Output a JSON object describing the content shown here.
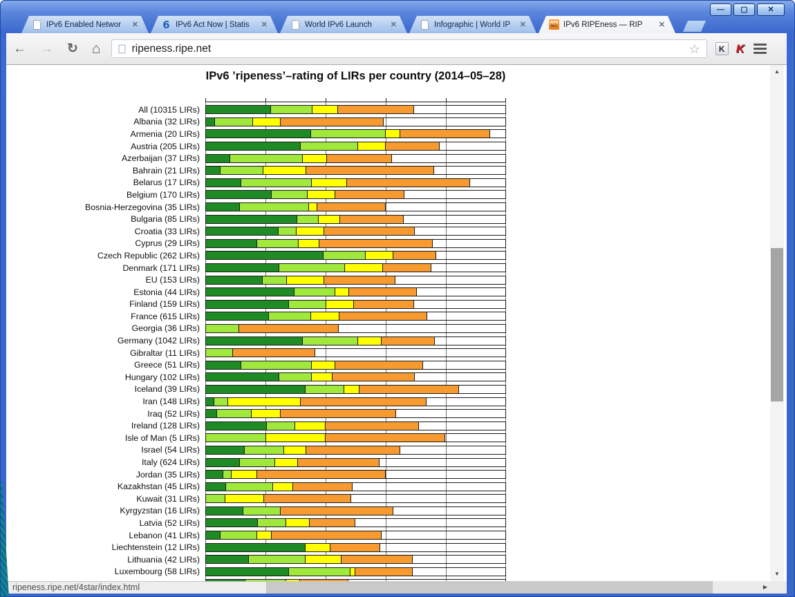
{
  "window": {
    "controls": {
      "minimize": "—",
      "maximize": "▢",
      "close": "✕"
    }
  },
  "icons": {
    "back": "←",
    "forward": "→",
    "reload": "↻",
    "home": "⌂",
    "star": "☆",
    "tab_close": "✕",
    "k_extension": "K",
    "kaspersky": "K",
    "ipv6_favicon": "6",
    "ripe_favicon_line1": "RIPE",
    "ripe_favicon_line2": "NCC",
    "scroll_up": "▲",
    "scroll_down": "▼",
    "scroll_right": "▶"
  },
  "tabs": [
    {
      "label": "IPv6 Enabled Networ",
      "icon": "page-icon",
      "active": false
    },
    {
      "label": "IPv6 Act Now | Statis",
      "icon": "ipv6-logo-icon",
      "active": false
    },
    {
      "label": "World IPv6 Launch",
      "icon": "page-icon",
      "active": false
    },
    {
      "label": "Infographic | World IP",
      "icon": "page-icon",
      "active": false
    },
    {
      "label": "IPv6 RIPEness — RIP",
      "icon": "ripe-ncc-favicon",
      "active": true
    }
  ],
  "toolbar": {
    "url": "ripeness.ripe.net"
  },
  "statusbar": {
    "link_preview": "ripeness.ripe.net/4star/index.html"
  },
  "chart_data": {
    "type": "bar",
    "subtype": "horizontal-stacked",
    "title": "IPv6 ’ripeness’–rating of LIRs per country (2014–05–28)",
    "xlabel": "",
    "ylabel": "",
    "xlim": [
      0,
      100
    ],
    "gridlines_pct": [
      0,
      20,
      40,
      60,
      80,
      100
    ],
    "grid": true,
    "legend": "none visible",
    "segment_colors": [
      "#1f8b24",
      "#a0e83c",
      "#ffff00",
      "#f79b30"
    ],
    "remainder_color": "#ffffff",
    "bar_border_color": "#1a1a1a",
    "units": "percent of LIRs per rating (dark green, light green, yellow, orange, remainder white)",
    "rows": [
      {
        "label": "All (10315 LIRs)",
        "segments": [
          21.6,
          14.0,
          8.5,
          25.4
        ]
      },
      {
        "label": "Albania (32 LIRs)",
        "segments": [
          3.1,
          12.5,
          9.4,
          34.4
        ]
      },
      {
        "label": "Armenia (20 LIRs)",
        "segments": [
          35.0,
          25.0,
          5.0,
          30.0
        ]
      },
      {
        "label": "Austria (205 LIRs)",
        "segments": [
          31.7,
          19.0,
          9.3,
          18.0
        ]
      },
      {
        "label": "Azerbaijan (37 LIRs)",
        "segments": [
          8.1,
          24.3,
          8.1,
          21.6
        ]
      },
      {
        "label": "Bahrain (21 LIRs)",
        "segments": [
          4.8,
          14.3,
          14.3,
          42.9
        ]
      },
      {
        "label": "Belarus (17 LIRs)",
        "segments": [
          11.8,
          23.5,
          11.8,
          41.2
        ]
      },
      {
        "label": "Belgium (170 LIRs)",
        "segments": [
          22.0,
          11.9,
          9.2,
          23.1
        ]
      },
      {
        "label": "Bosnia-Herzegovina (35 LIRs)",
        "segments": [
          11.4,
          22.9,
          2.9,
          22.9
        ]
      },
      {
        "label": "Bulgaria (85 LIRs)",
        "segments": [
          30.6,
          7.1,
          7.1,
          21.2
        ]
      },
      {
        "label": "Croatia (33 LIRs)",
        "segments": [
          24.2,
          6.1,
          9.1,
          30.3
        ]
      },
      {
        "label": "Cyprus (29 LIRs)",
        "segments": [
          17.2,
          13.8,
          6.9,
          37.9
        ]
      },
      {
        "label": "Czech Republic (262 LIRs)",
        "segments": [
          39.2,
          14.2,
          9.2,
          14.3
        ]
      },
      {
        "label": "Denmark (171 LIRs)",
        "segments": [
          24.5,
          22.0,
          12.7,
          16.0
        ]
      },
      {
        "label": "EU (153 LIRs)",
        "segments": [
          18.9,
          8.1,
          12.6,
          23.8
        ]
      },
      {
        "label": "Estonia (44 LIRs)",
        "segments": [
          29.5,
          13.6,
          4.6,
          22.7
        ]
      },
      {
        "label": "Finland (159 LIRs)",
        "segments": [
          27.7,
          12.5,
          9.2,
          20.1
        ]
      },
      {
        "label": "France (615 LIRs)",
        "segments": [
          21.0,
          14.0,
          9.6,
          29.3
        ]
      },
      {
        "label": "Georgia (36 LIRs)",
        "segments": [
          0,
          11.1,
          0,
          33.3
        ]
      },
      {
        "label": "Germany (1042 LIRs)",
        "segments": [
          32.3,
          18.4,
          7.9,
          17.8
        ]
      },
      {
        "label": "Gibraltar (11 LIRs)",
        "segments": [
          0,
          9.1,
          0,
          27.3
        ]
      },
      {
        "label": "Greece (51 LIRs)",
        "segments": [
          11.8,
          23.5,
          7.8,
          29.4
        ]
      },
      {
        "label": "Hungary (102 LIRs)",
        "segments": [
          24.5,
          10.8,
          6.9,
          27.5
        ]
      },
      {
        "label": "Iceland (39 LIRs)",
        "segments": [
          33.3,
          12.8,
          5.1,
          33.3
        ]
      },
      {
        "label": "Iran (148 LIRs)",
        "segments": [
          2.7,
          4.7,
          24.3,
          41.9
        ]
      },
      {
        "label": "Iraq (52 LIRs)",
        "segments": [
          3.8,
          11.5,
          9.6,
          38.5
        ]
      },
      {
        "label": "Ireland (128 LIRs)",
        "segments": [
          20.3,
          9.4,
          10.2,
          31.3
        ]
      },
      {
        "label": "Isle of Man (5 LIRs)",
        "segments": [
          0,
          20.0,
          20.0,
          40.0
        ]
      },
      {
        "label": "Israel (54 LIRs)",
        "segments": [
          13.0,
          13.0,
          7.4,
          31.5
        ]
      },
      {
        "label": "Italy (624 LIRs)",
        "segments": [
          11.3,
          11.7,
          7.8,
          27.2
        ]
      },
      {
        "label": "Jordan (35 LIRs)",
        "segments": [
          5.7,
          2.9,
          8.6,
          42.9
        ]
      },
      {
        "label": "Kazakhstan (45 LIRs)",
        "segments": [
          6.7,
          15.6,
          6.7,
          20.0
        ]
      },
      {
        "label": "Kuwait (31 LIRs)",
        "segments": [
          0,
          6.5,
          12.9,
          29.0
        ]
      },
      {
        "label": "Kyrgyzstan (16 LIRs)",
        "segments": [
          12.5,
          12.5,
          0,
          37.5
        ]
      },
      {
        "label": "Latvia (52 LIRs)",
        "segments": [
          17.3,
          9.6,
          7.7,
          15.4
        ]
      },
      {
        "label": "Lebanon (41 LIRs)",
        "segments": [
          4.9,
          12.2,
          4.9,
          36.6
        ]
      },
      {
        "label": "Liechtenstein (12 LIRs)",
        "segments": [
          33.3,
          0,
          8.3,
          16.7
        ]
      },
      {
        "label": "Lithuania (42 LIRs)",
        "segments": [
          14.3,
          19.0,
          11.9,
          23.8
        ]
      },
      {
        "label": "Luxembourg (58 LIRs)",
        "segments": [
          27.6,
          20.7,
          1.7,
          19.0
        ]
      },
      {
        "label": "",
        "segments": [
          13.1,
          13.6,
          4.6,
          16.3
        ]
      }
    ]
  }
}
